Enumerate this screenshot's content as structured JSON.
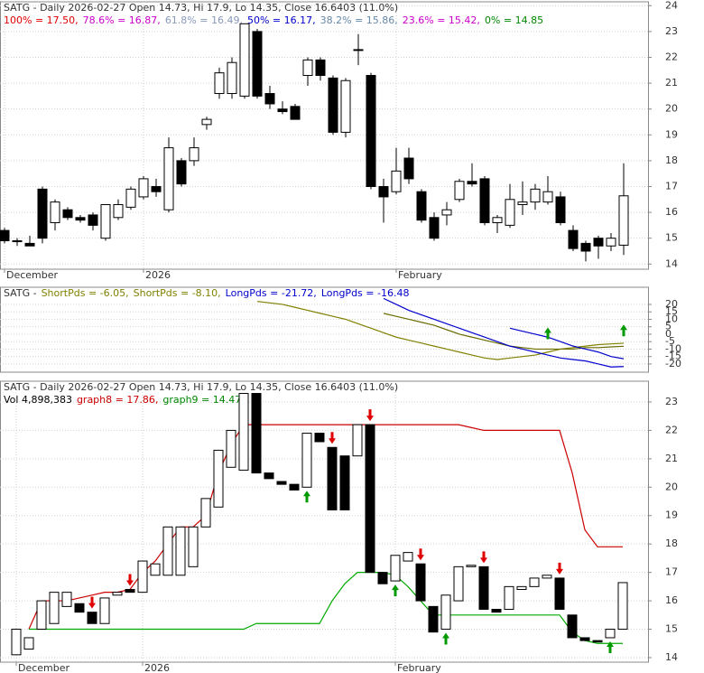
{
  "chart_data": [
    {
      "type": "candlestick",
      "title": "SATG - Daily 2026-02-27 Open 14.73, Hi 17.9, Lo 14.35, Close 16.6403 (11.0%)",
      "fib_levels": [
        {
          "text": "100% = 17.50,",
          "color": "#e00000"
        },
        {
          "text": "78.6% = 16.87,",
          "color": "#cc00cc"
        },
        {
          "text": "61.8% = 16.49,",
          "color": "#8899bb"
        },
        {
          "text": "50% = 16.17,",
          "color": "#0000cc"
        },
        {
          "text": "38.2% = 15.86,",
          "color": "#6688aa"
        },
        {
          "text": "23.6% = 15.42,",
          "color": "#cc00cc"
        },
        {
          "text": "0% = 14.85",
          "color": "#008800"
        }
      ],
      "categories": [
        "December",
        null,
        null,
        null,
        null,
        null,
        null,
        null,
        null,
        null,
        null,
        "2026",
        null,
        null,
        null,
        null,
        null,
        null,
        null,
        null,
        null,
        null,
        null,
        null,
        null,
        null,
        null,
        null,
        null,
        null,
        null,
        "February",
        null,
        null,
        null,
        null,
        null,
        null,
        null,
        null,
        null,
        null,
        null,
        null,
        null,
        null,
        null,
        null,
        null,
        null
      ],
      "open": [
        15.3,
        14.9,
        14.8,
        16.9,
        15.6,
        16.1,
        15.8,
        15.9,
        15.0,
        15.8,
        16.2,
        16.6,
        17.0,
        16.1,
        18.0,
        18.0,
        19.4,
        20.6,
        20.6,
        20.5,
        23.0,
        20.6,
        20.0,
        20.1,
        21.3,
        21.9,
        21.2,
        19.1,
        22.3,
        21.3,
        17.0,
        16.8,
        18.1,
        16.8,
        15.8,
        15.9,
        16.5,
        17.2,
        17.3,
        15.6,
        15.5,
        16.3,
        16.4,
        16.4,
        16.6,
        15.3,
        14.8,
        15.0,
        14.7,
        14.73
      ],
      "high": [
        15.4,
        15.0,
        15.1,
        17.0,
        16.5,
        16.2,
        15.9,
        16.0,
        16.3,
        16.5,
        17.0,
        17.4,
        17.3,
        18.9,
        18.1,
        18.9,
        19.7,
        21.6,
        22.0,
        23.3,
        23.1,
        20.9,
        20.3,
        20.2,
        22.0,
        22.0,
        21.3,
        21.2,
        22.9,
        21.4,
        17.3,
        18.5,
        18.5,
        16.9,
        16.0,
        16.4,
        17.3,
        17.9,
        17.4,
        15.9,
        17.1,
        17.2,
        17.1,
        17.4,
        16.8,
        15.5,
        14.9,
        15.1,
        15.2,
        17.9
      ],
      "low": [
        14.8,
        14.7,
        14.7,
        14.8,
        15.3,
        15.7,
        15.6,
        15.3,
        14.9,
        15.7,
        16.1,
        16.5,
        16.6,
        16.0,
        17.0,
        17.8,
        19.2,
        20.4,
        20.4,
        20.4,
        20.4,
        20.0,
        19.8,
        19.6,
        20.9,
        21.1,
        19.0,
        18.9,
        21.7,
        16.9,
        15.6,
        16.7,
        17.1,
        15.6,
        14.9,
        15.5,
        16.4,
        17.0,
        15.5,
        15.2,
        15.4,
        15.9,
        16.1,
        16.3,
        15.5,
        14.5,
        14.1,
        14.2,
        14.5,
        14.35
      ],
      "close": [
        14.9,
        14.9,
        14.7,
        15.0,
        16.4,
        15.8,
        15.7,
        15.5,
        16.3,
        16.3,
        16.9,
        17.3,
        16.8,
        18.5,
        17.1,
        18.5,
        19.6,
        21.4,
        21.8,
        23.3,
        20.5,
        20.2,
        19.9,
        19.6,
        21.9,
        21.3,
        19.1,
        21.1,
        22.3,
        17.0,
        16.6,
        17.6,
        17.3,
        15.7,
        15.0,
        16.1,
        17.2,
        17.1,
        15.6,
        15.8,
        16.5,
        16.4,
        16.9,
        16.8,
        15.6,
        14.6,
        14.5,
        14.7,
        15.0,
        16.6403
      ],
      "ylim": [
        13.8,
        24.15
      ],
      "yticks": [
        14,
        15,
        16,
        17,
        18,
        19,
        20,
        21,
        22,
        23,
        24
      ],
      "grid": true
    },
    {
      "type": "line",
      "title": "SATG -",
      "legend": [
        {
          "text": "ShortPds = -6.05,",
          "color": "#808000"
        },
        {
          "text": "ShortPds = -8.10,",
          "color": "#808000"
        },
        {
          "text": "LongPds = -21.72,",
          "color": "#0000cc"
        },
        {
          "text": "LongPds = -16.48",
          "color": "#0000cc"
        }
      ],
      "series": [
        {
          "name": "ShortPds",
          "color": "#808000",
          "values": [
            null,
            null,
            null,
            null,
            null,
            null,
            null,
            null,
            null,
            null,
            null,
            null,
            null,
            null,
            null,
            null,
            null,
            null,
            null,
            null,
            22,
            21,
            20,
            18,
            16,
            14,
            12,
            10,
            7,
            4,
            1,
            -2,
            -4,
            -6,
            -8,
            -10,
            -12,
            -14,
            -16,
            -17,
            -16,
            -15,
            -14,
            -12,
            -10,
            -9,
            -8,
            -7,
            -6.5,
            -6.05
          ]
        },
        {
          "name": "ShortPds",
          "color": "#6b6b00",
          "values": [
            null,
            null,
            null,
            null,
            null,
            null,
            null,
            null,
            null,
            null,
            null,
            null,
            null,
            null,
            null,
            null,
            null,
            null,
            null,
            null,
            null,
            null,
            null,
            null,
            null,
            null,
            null,
            null,
            null,
            null,
            14,
            12,
            10,
            8,
            6,
            3,
            0,
            -2,
            -4,
            -6,
            -8,
            -9,
            -10,
            -10,
            -10,
            -10,
            -9,
            -9,
            -8.5,
            -8.1
          ]
        },
        {
          "name": "LongPds",
          "color": "#0000cc",
          "values": [
            null,
            null,
            null,
            null,
            null,
            null,
            null,
            null,
            null,
            null,
            null,
            null,
            null,
            null,
            null,
            null,
            null,
            null,
            null,
            null,
            null,
            null,
            null,
            null,
            null,
            null,
            null,
            null,
            null,
            null,
            24,
            20,
            16,
            13,
            10,
            7,
            4,
            1,
            -2,
            -5,
            -8,
            -10,
            -12,
            -14,
            -16,
            -17,
            -18,
            -20,
            -22,
            -21.72
          ]
        },
        {
          "name": "LongPds",
          "color": "#0000cc",
          "values": [
            null,
            null,
            null,
            null,
            null,
            null,
            null,
            null,
            null,
            null,
            null,
            null,
            null,
            null,
            null,
            null,
            null,
            null,
            null,
            null,
            null,
            null,
            null,
            null,
            null,
            null,
            null,
            null,
            null,
            null,
            null,
            null,
            null,
            null,
            null,
            null,
            null,
            null,
            null,
            null,
            4,
            2,
            0,
            -2,
            -5,
            -8,
            -10,
            -12,
            -15,
            -16.48
          ]
        }
      ],
      "up_arrows": [
        43,
        49
      ],
      "ylim": [
        -25.5,
        31.5
      ],
      "yticks": [
        -20,
        -15,
        -10,
        -5,
        0,
        5,
        10,
        15,
        20
      ],
      "grid": true
    },
    {
      "type": "candlestick",
      "title": "SATG - Daily 2026-02-27 Open 14.73, Hi 17.9, Lo 14.35, Close 16.6403 (11.0%)",
      "legend": [
        {
          "text": "Vol 4,898,383",
          "color": "#000000"
        },
        {
          "text": "graph8 = 17.86,",
          "color": "#cc0000"
        },
        {
          "text": "graph9 = 14.47",
          "color": "#008800"
        }
      ],
      "categories": [
        "December",
        null,
        null,
        null,
        null,
        null,
        null,
        null,
        null,
        null,
        "2026",
        null,
        null,
        null,
        null,
        null,
        null,
        null,
        null,
        null,
        null,
        null,
        null,
        null,
        null,
        null,
        null,
        null,
        null,
        null,
        "February",
        null,
        null,
        null,
        null,
        null,
        null,
        null,
        null,
        null,
        null,
        null,
        null,
        null,
        null,
        null,
        null,
        null,
        null
      ],
      "open": [
        14.1,
        14.3,
        15.0,
        15.2,
        15.8,
        15.9,
        15.6,
        15.2,
        16.2,
        16.4,
        16.3,
        16.9,
        16.9,
        16.9,
        17.2,
        18.6,
        19.3,
        20.7,
        20.6,
        23.3,
        20.5,
        20.2,
        20.1,
        20.0,
        21.9,
        21.4,
        21.1,
        21.1,
        22.2,
        17.0,
        16.7,
        17.4,
        17.3,
        15.8,
        15.0,
        16.0,
        17.2,
        17.2,
        15.7,
        15.7,
        16.4,
        16.5,
        16.8,
        16.8,
        15.5,
        14.7,
        14.6,
        14.7,
        15.0
      ],
      "close": [
        15.0,
        14.7,
        16.0,
        16.3,
        16.3,
        15.6,
        15.2,
        16.1,
        16.3,
        16.3,
        17.4,
        17.3,
        18.6,
        18.6,
        18.6,
        19.6,
        21.3,
        22.0,
        23.3,
        20.5,
        20.3,
        20.1,
        19.9,
        21.9,
        21.6,
        19.2,
        19.2,
        22.2,
        17.0,
        16.6,
        17.6,
        17.7,
        16.0,
        14.9,
        16.2,
        17.2,
        17.25,
        15.7,
        15.6,
        16.5,
        16.5,
        16.8,
        16.9,
        15.7,
        14.7,
        14.6,
        14.55,
        15.0,
        16.64
      ],
      "series": [
        {
          "name": "graph8",
          "color": "#cc0000",
          "values": [
            null,
            15.0,
            16.0,
            16.0,
            16.0,
            16.1,
            16.2,
            16.3,
            16.3,
            16.4,
            17.0,
            17.4,
            18.0,
            18.6,
            18.6,
            19.0,
            20.5,
            21.5,
            22.2,
            22.2,
            22.2,
            22.2,
            22.2,
            22.2,
            22.2,
            22.2,
            22.2,
            22.2,
            22.2,
            22.2,
            22.2,
            22.2,
            22.2,
            22.2,
            22.2,
            22.2,
            22.1,
            22.0,
            22.0,
            22.0,
            22.0,
            22.0,
            22.0,
            22.0,
            20.5,
            18.5,
            17.9,
            17.9,
            17.9
          ]
        },
        {
          "name": "graph9",
          "color": "#00aa00",
          "values": [
            null,
            15.0,
            15.0,
            15.0,
            15.0,
            15.0,
            15.0,
            15.0,
            15.0,
            15.0,
            15.0,
            15.0,
            15.0,
            15.0,
            15.0,
            15.0,
            15.0,
            15.0,
            15.0,
            15.2,
            15.2,
            15.2,
            15.2,
            15.2,
            15.2,
            16.0,
            16.6,
            17.0,
            17.0,
            17.0,
            16.9,
            16.5,
            16.0,
            15.5,
            15.5,
            15.5,
            15.5,
            15.5,
            15.5,
            15.5,
            15.5,
            15.5,
            15.5,
            15.5,
            14.9,
            14.6,
            14.5,
            14.5,
            14.5
          ]
        }
      ],
      "sell_arrows": [
        6,
        9,
        25,
        28,
        32,
        37,
        43
      ],
      "buy_arrows": [
        23,
        30,
        34,
        47
      ],
      "ylim": [
        13.84,
        23.73
      ],
      "yticks": [
        14,
        15,
        16,
        17,
        18,
        19,
        20,
        21,
        22,
        23
      ],
      "grid": true
    }
  ]
}
